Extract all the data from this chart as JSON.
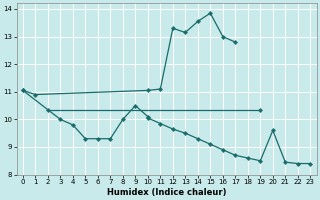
{
  "xlabel": "Humidex (Indice chaleur)",
  "bg_color": "#c8eaea",
  "grid_color": "#ffffff",
  "line_color": "#1a6b6b",
  "xlim": [
    -0.5,
    23.5
  ],
  "ylim": [
    8,
    14.2
  ],
  "yticks": [
    8,
    9,
    10,
    11,
    12,
    13,
    14
  ],
  "xticks": [
    0,
    1,
    2,
    3,
    4,
    5,
    6,
    7,
    8,
    9,
    10,
    11,
    12,
    13,
    14,
    15,
    16,
    17,
    18,
    19,
    20,
    21,
    22,
    23
  ],
  "series": [
    {
      "x": [
        0,
        1,
        10,
        11,
        12,
        13,
        14,
        15,
        16,
        17
      ],
      "y": [
        11.05,
        10.9,
        11.05,
        11.1,
        13.3,
        13.15,
        13.55,
        13.85,
        13.0,
        12.8
      ]
    },
    {
      "x": [
        2,
        19
      ],
      "y": [
        10.35,
        10.35
      ]
    },
    {
      "x": [
        0,
        3,
        4,
        5,
        6,
        7,
        8,
        9,
        10
      ],
      "y": [
        11.05,
        10.0,
        9.8,
        9.3,
        9.3,
        9.3,
        10.0,
        10.5,
        10.1
      ]
    },
    {
      "x": [
        10,
        11,
        12,
        13,
        14,
        15,
        16,
        17,
        18,
        19,
        20,
        21,
        22,
        23
      ],
      "y": [
        10.05,
        9.85,
        9.65,
        9.5,
        9.3,
        9.1,
        8.9,
        8.7,
        8.6,
        8.5,
        9.6,
        8.45,
        8.4,
        8.4
      ]
    }
  ]
}
